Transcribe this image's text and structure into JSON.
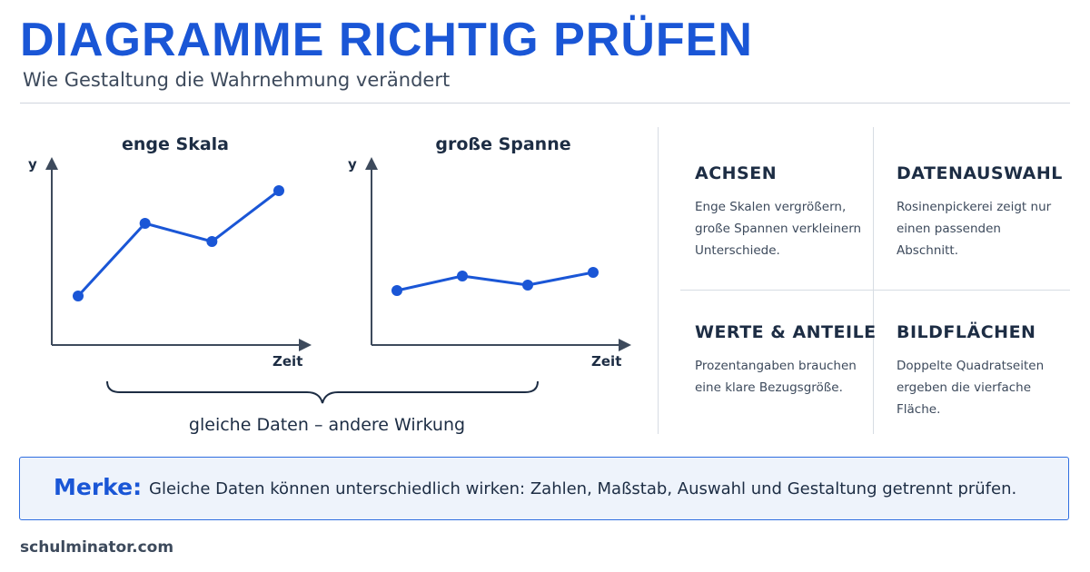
{
  "header": {
    "title": "DIAGRAMME RICHTIG PRÜFEN",
    "subtitle": "Wie Gestaltung die Wahrnehmung verändert"
  },
  "charts": {
    "left": {
      "title": "enge Skala",
      "ylabel": "y",
      "xlabel": "Zeit"
    },
    "right": {
      "title": "große Spanne",
      "ylabel": "y",
      "xlabel": "Zeit"
    },
    "caption": "gleiche Daten – andere Wirkung"
  },
  "chart_data": [
    {
      "type": "line",
      "title": "enge Skala",
      "xlabel": "Zeit",
      "ylabel": "y",
      "x": [
        1,
        2,
        3,
        4
      ],
      "values": [
        0.27,
        0.67,
        0.57,
        0.85
      ],
      "ylim": [
        0,
        1
      ],
      "color": "#1a56d6",
      "grid": false
    },
    {
      "type": "line",
      "title": "große Spanne",
      "xlabel": "Zeit",
      "ylabel": "y",
      "x": [
        1,
        2,
        3,
        4
      ],
      "values": [
        0.3,
        0.38,
        0.33,
        0.4
      ],
      "ylim": [
        0,
        1
      ],
      "color": "#1a56d6",
      "grid": false
    }
  ],
  "cards": [
    {
      "title": "ACHSEN",
      "text": "Enge Skalen vergrößern, große Spannen verkleinern Unterschiede."
    },
    {
      "title": "DATENAUSWAHL",
      "text": "Rosinenpickerei zeigt nur einen passenden Abschnitt."
    },
    {
      "title": "WERTE & ANTEILE",
      "text": "Prozentangaben brauchen eine klare Bezugsgröße."
    },
    {
      "title": "BILDFLÄCHEN",
      "text": "Doppelte Quadratseiten ergeben die vierfache Fläche."
    }
  ],
  "merke": {
    "label": "Merke:",
    "text": "Gleiche Daten können unterschiedlich wirken: Zahlen, Maßstab, Auswahl und Gestaltung getrennt prüfen."
  },
  "footer": {
    "brand": "schulminator.com"
  },
  "colors": {
    "accent": "#1a56d6",
    "text": "#1d2d44",
    "axis": "#3d4a5c"
  }
}
